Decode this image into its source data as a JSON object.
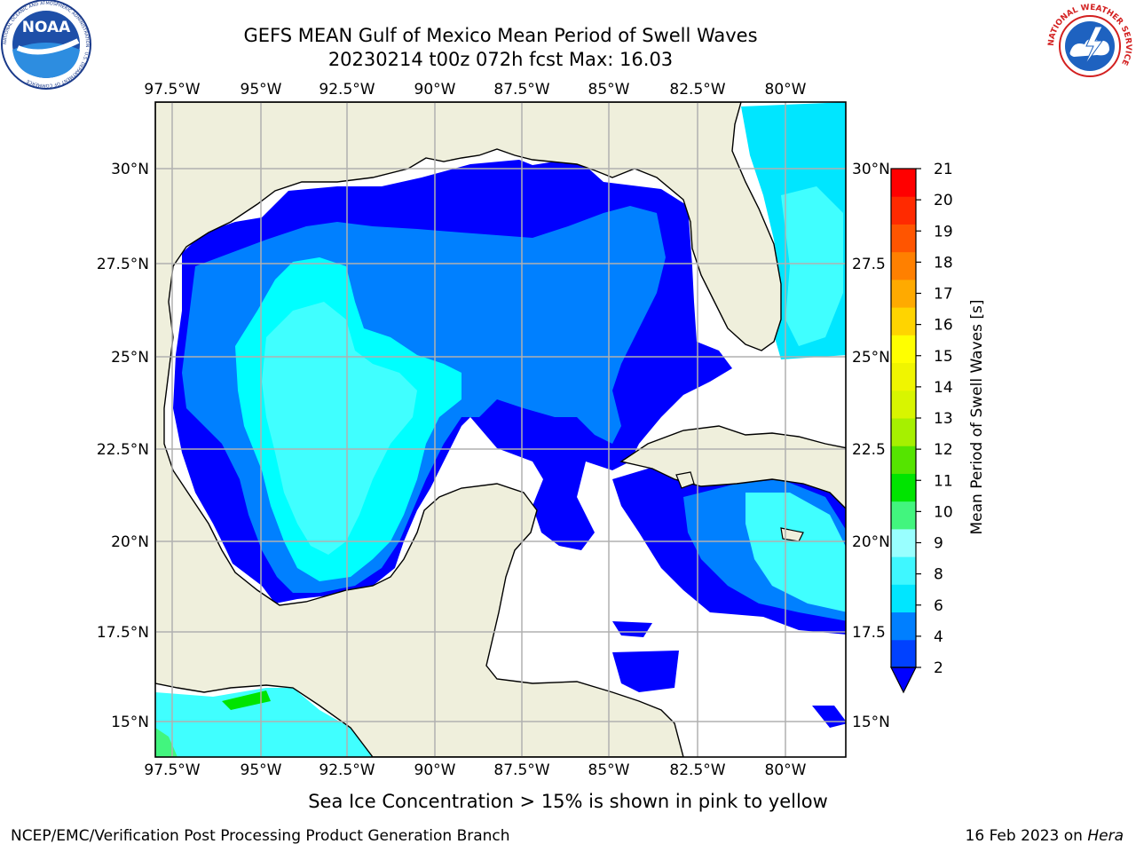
{
  "header": {
    "title_line1": "GEFS MEAN Gulf of Mexico Mean Period of Swell Waves",
    "title_line2": "20230214 t00z 072h fcst   Max: 16.03"
  },
  "logos": {
    "noaa_text": "NOAA",
    "noaa_ring_text": "NATIONAL OCEANIC AND ATMOSPHERIC ADMINISTRATION · U.S. DEPARTMENT OF COMMERCE",
    "nws_ring_text": "NATIONAL WEATHER SERVICE"
  },
  "map": {
    "lon_labels": [
      "97.5°W",
      "95°W",
      "92.5°W",
      "90°W",
      "87.5°W",
      "85°W",
      "82.5°W",
      "80°W"
    ],
    "lat_labels_left": [
      "30°N",
      "27.5°N",
      "25°N",
      "22.5°N",
      "20°N",
      "17.5°N",
      "15°N"
    ],
    "lat_labels_right": [
      "30°N",
      "27.5",
      "25°N",
      "22.5",
      "20°N",
      "17.5",
      "15°N"
    ],
    "grid": true,
    "colors": {
      "land": "#efefdc",
      "ocean_missing": "#ffffff",
      "grid": "#b0b0b0"
    }
  },
  "colorbar": {
    "label": "Mean Period of Swell Waves [s]",
    "ticks": [
      "2",
      "4",
      "6",
      "8",
      "9",
      "10",
      "11",
      "12",
      "13",
      "14",
      "15",
      "16",
      "17",
      "18",
      "19",
      "20",
      "21"
    ],
    "colors": [
      "#0041ff",
      "#007fff",
      "#00e6ff",
      "#3ff7ff",
      "#99ffff",
      "#42f57e",
      "#00e400",
      "#55e400",
      "#a6f000",
      "#d8f500",
      "#f0f500",
      "#ffff00",
      "#ffd400",
      "#ffaa00",
      "#ff8000",
      "#ff5500",
      "#ff2a00",
      "#ff0000"
    ],
    "under_color": "#0000ff"
  },
  "footer": {
    "ice_note": "Sea Ice Concentration > 15% is shown in pink to yellow",
    "credit_left": "NCEP/EMC/Verification Post Processing Product Generation Branch",
    "credit_date": "16 Feb 2023 on ",
    "credit_machine": "Hera"
  }
}
